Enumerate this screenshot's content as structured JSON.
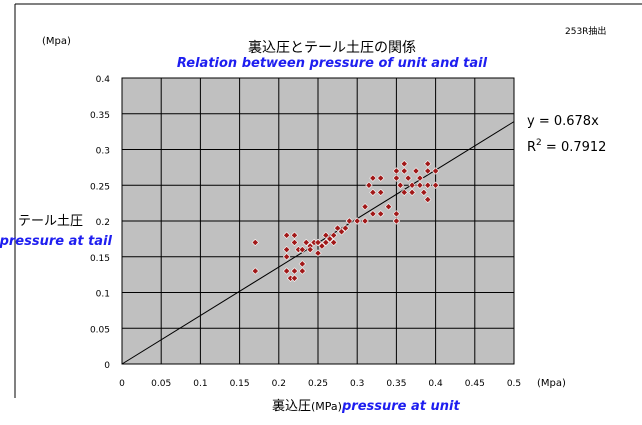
{
  "header": {
    "unit_label": "(Mpa)",
    "title_jp": "裏込圧とテール土圧の関係",
    "title_en": "Relation between pressure of unit and tail",
    "ref_code": "253R抽出"
  },
  "equation": {
    "line1": "y = 0.678x",
    "line2_prefix": "R",
    "line2_sup": "2",
    "line2_suffix": " = 0.7912"
  },
  "ylabel": {
    "jp": "テール土圧",
    "en": "pressure at tail"
  },
  "xlabel": {
    "jp": "裏込圧",
    "unit": "(MPa)",
    "en": "pressure at unit"
  },
  "x_unit_label": "(Mpa)",
  "colors": {
    "plot_bg": "#c0c0c0",
    "grid": "#000000",
    "marker_fill": "#a01818",
    "marker_stroke": "#ffffff",
    "accent_text": "#1e1ef0"
  },
  "chart_data": {
    "type": "scatter",
    "xlim": [
      0,
      0.5
    ],
    "ylim": [
      0,
      0.4
    ],
    "x_ticks": [
      "0",
      "0.05",
      "0.1",
      "0.15",
      "0.2",
      "0.25",
      "0.3",
      "0.35",
      "0.4",
      "0.45",
      "0.5"
    ],
    "y_ticks": [
      "0",
      "0.05",
      "0.1",
      "0.15",
      "0.2",
      "0.25",
      "0.3",
      "0.35",
      "0.4"
    ],
    "grid": true,
    "trendline": {
      "type": "linear",
      "slope": 0.678,
      "intercept": 0,
      "r2": 0.7912
    },
    "points": [
      [
        0.17,
        0.17
      ],
      [
        0.17,
        0.13
      ],
      [
        0.21,
        0.18
      ],
      [
        0.21,
        0.16
      ],
      [
        0.21,
        0.15
      ],
      [
        0.21,
        0.13
      ],
      [
        0.215,
        0.12
      ],
      [
        0.22,
        0.18
      ],
      [
        0.22,
        0.17
      ],
      [
        0.22,
        0.13
      ],
      [
        0.22,
        0.12
      ],
      [
        0.225,
        0.16
      ],
      [
        0.23,
        0.16
      ],
      [
        0.23,
        0.14
      ],
      [
        0.23,
        0.13
      ],
      [
        0.235,
        0.17
      ],
      [
        0.24,
        0.165
      ],
      [
        0.24,
        0.16
      ],
      [
        0.245,
        0.17
      ],
      [
        0.25,
        0.17
      ],
      [
        0.25,
        0.155
      ],
      [
        0.255,
        0.165
      ],
      [
        0.26,
        0.18
      ],
      [
        0.26,
        0.17
      ],
      [
        0.265,
        0.175
      ],
      [
        0.27,
        0.18
      ],
      [
        0.27,
        0.17
      ],
      [
        0.275,
        0.19
      ],
      [
        0.28,
        0.185
      ],
      [
        0.285,
        0.19
      ],
      [
        0.29,
        0.2
      ],
      [
        0.3,
        0.2
      ],
      [
        0.3,
        0.2
      ],
      [
        0.31,
        0.2
      ],
      [
        0.31,
        0.22
      ],
      [
        0.315,
        0.25
      ],
      [
        0.32,
        0.26
      ],
      [
        0.32,
        0.24
      ],
      [
        0.32,
        0.21
      ],
      [
        0.33,
        0.26
      ],
      [
        0.33,
        0.24
      ],
      [
        0.33,
        0.21
      ],
      [
        0.34,
        0.22
      ],
      [
        0.35,
        0.27
      ],
      [
        0.35,
        0.26
      ],
      [
        0.35,
        0.2
      ],
      [
        0.35,
        0.21
      ],
      [
        0.355,
        0.25
      ],
      [
        0.36,
        0.28
      ],
      [
        0.36,
        0.27
      ],
      [
        0.36,
        0.24
      ],
      [
        0.365,
        0.26
      ],
      [
        0.37,
        0.25
      ],
      [
        0.37,
        0.24
      ],
      [
        0.375,
        0.27
      ],
      [
        0.38,
        0.26
      ],
      [
        0.38,
        0.25
      ],
      [
        0.385,
        0.24
      ],
      [
        0.39,
        0.28
      ],
      [
        0.39,
        0.27
      ],
      [
        0.39,
        0.25
      ],
      [
        0.39,
        0.23
      ],
      [
        0.4,
        0.27
      ],
      [
        0.4,
        0.25
      ]
    ]
  }
}
